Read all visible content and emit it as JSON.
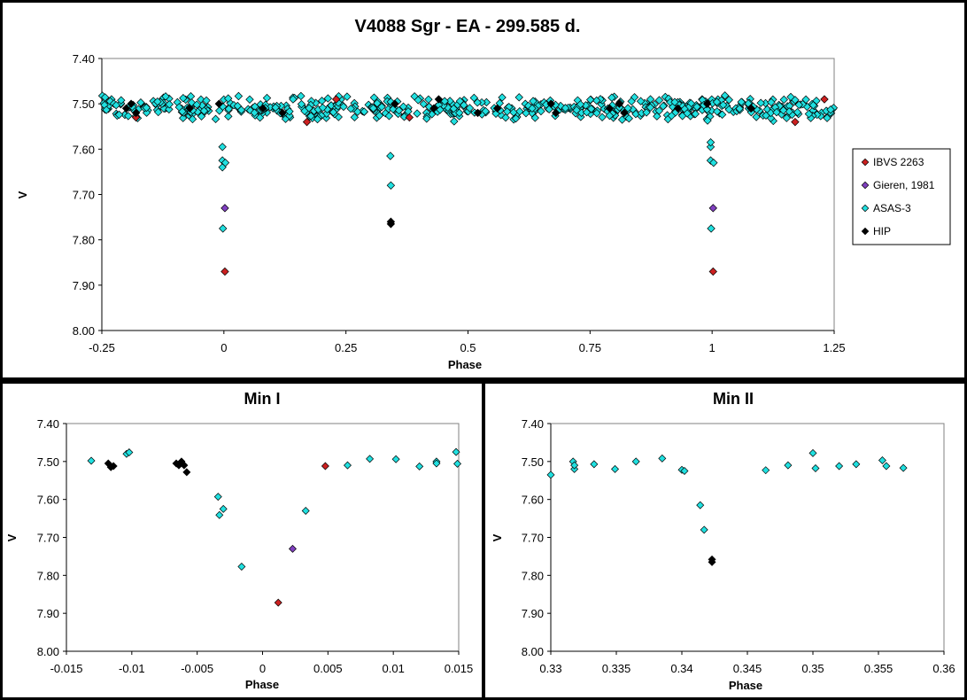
{
  "chart_data": [
    {
      "id": "main",
      "type": "scatter",
      "title": "V4088 Sgr - EA - 299.585 d.",
      "xlabel": "Phase",
      "ylabel": "V",
      "xlim": [
        -0.25,
        1.25
      ],
      "ylim": [
        7.4,
        8.0
      ],
      "y_inverted": true,
      "xticks": [
        -0.25,
        0,
        0.25,
        0.5,
        0.75,
        1,
        1.25
      ],
      "xtick_labels": [
        "-0.25",
        "0",
        "0.25",
        "0.5",
        "0.75",
        "1",
        "1.25"
      ],
      "yticks": [
        7.4,
        7.5,
        7.6,
        7.7,
        7.8,
        7.9,
        8.0
      ],
      "ytick_labels": [
        "7.40",
        "7.50",
        "7.60",
        "7.70",
        "7.80",
        "7.90",
        "8.00"
      ],
      "grid": false,
      "legend_position": "right",
      "series": [
        {
          "name": "IBVS 2263",
          "color": "#cc2020",
          "marker": "diamond",
          "points": [
            [
              0.002,
              7.87
            ],
            [
              1.002,
              7.87
            ],
            [
              0.23,
              7.49
            ],
            [
              0.38,
              7.53
            ],
            [
              0.17,
              7.54
            ],
            [
              1.17,
              7.54
            ],
            [
              1.23,
              7.49
            ],
            [
              -0.18,
              7.53
            ]
          ]
        },
        {
          "name": "Gieren, 1981",
          "color": "#8040c0",
          "marker": "diamond",
          "points": [
            [
              0.002,
              7.73
            ],
            [
              1.002,
              7.73
            ]
          ]
        },
        {
          "name": "ASAS-3",
          "color": "#20e0e0",
          "marker": "diamond",
          "points": [
            [
              -0.003,
              7.595
            ],
            [
              -0.003,
              7.64
            ],
            [
              -0.003,
              7.625
            ],
            [
              0.003,
              7.63
            ],
            [
              -0.002,
              7.775
            ],
            [
              0.997,
              7.595
            ],
            [
              0.997,
              7.585
            ],
            [
              0.997,
              7.625
            ],
            [
              1.003,
              7.63
            ],
            [
              0.998,
              7.775
            ],
            [
              0.341,
              7.615
            ],
            [
              0.342,
              7.68
            ]
          ],
          "band": {
            "x_from": -0.25,
            "x_to": 1.25,
            "y_center": 7.51,
            "y_spread": 0.03,
            "count": 600
          }
        },
        {
          "name": "HIP",
          "color": "#000000",
          "marker": "diamond",
          "points": [
            [
              0.342,
              7.76
            ],
            [
              0.342,
              7.765
            ],
            [
              -0.2,
              7.51
            ],
            [
              -0.19,
              7.5
            ],
            [
              -0.18,
              7.52
            ],
            [
              -0.07,
              7.51
            ],
            [
              -0.01,
              7.5
            ],
            [
              0.08,
              7.51
            ],
            [
              0.12,
              7.52
            ],
            [
              0.35,
              7.5
            ],
            [
              0.43,
              7.51
            ],
            [
              0.44,
              7.49
            ],
            [
              0.52,
              7.52
            ],
            [
              0.56,
              7.51
            ],
            [
              0.67,
              7.5
            ],
            [
              0.68,
              7.52
            ],
            [
              0.79,
              7.51
            ],
            [
              0.81,
              7.5
            ],
            [
              0.82,
              7.52
            ],
            [
              0.93,
              7.51
            ],
            [
              0.99,
              7.5
            ],
            [
              1.08,
              7.51
            ]
          ]
        }
      ]
    },
    {
      "id": "min1",
      "type": "scatter",
      "title": "Min I",
      "xlabel": "Phase",
      "ylabel": "V",
      "xlim": [
        -0.015,
        0.015
      ],
      "ylim": [
        7.4,
        8.0
      ],
      "y_inverted": true,
      "xticks": [
        -0.015,
        -0.01,
        -0.005,
        0,
        0.005,
        0.01,
        0.015
      ],
      "xtick_labels": [
        "-0.015",
        "-0.01",
        "-0.005",
        "0",
        "0.005",
        "0.01",
        "0.015"
      ],
      "yticks": [
        7.4,
        7.5,
        7.6,
        7.7,
        7.8,
        7.9,
        8.0
      ],
      "ytick_labels": [
        "7.40",
        "7.50",
        "7.60",
        "7.70",
        "7.80",
        "7.90",
        "8.00"
      ],
      "grid": false,
      "series": [
        {
          "name": "IBVS 2263",
          "color": "#cc2020",
          "marker": "diamond",
          "points": [
            [
              0.0012,
              7.872
            ],
            [
              0.0048,
              7.512
            ]
          ]
        },
        {
          "name": "Gieren, 1981",
          "color": "#8040c0",
          "marker": "diamond",
          "points": [
            [
              0.0023,
              7.73
            ]
          ]
        },
        {
          "name": "ASAS-3",
          "color": "#20e0e0",
          "marker": "diamond",
          "points": [
            [
              -0.0131,
              7.498
            ],
            [
              -0.0104,
              7.48
            ],
            [
              -0.0102,
              7.476
            ],
            [
              -0.0034,
              7.593
            ],
            [
              -0.0033,
              7.641
            ],
            [
              -0.003,
              7.625
            ],
            [
              -0.0016,
              7.777
            ],
            [
              0.0033,
              7.63
            ],
            [
              0.0065,
              7.51
            ],
            [
              0.0082,
              7.493
            ],
            [
              0.0102,
              7.494
            ],
            [
              0.012,
              7.513
            ],
            [
              0.0133,
              7.5
            ],
            [
              0.0133,
              7.505
            ],
            [
              0.0148,
              7.475
            ],
            [
              0.0149,
              7.506
            ]
          ]
        },
        {
          "name": "HIP",
          "color": "#000000",
          "marker": "diamond",
          "points": [
            [
              -0.0118,
              7.505
            ],
            [
              -0.0116,
              7.515
            ],
            [
              -0.0114,
              7.512
            ],
            [
              -0.0066,
              7.505
            ],
            [
              -0.0064,
              7.51
            ],
            [
              -0.0062,
              7.5
            ],
            [
              -0.006,
              7.51
            ],
            [
              -0.0058,
              7.528
            ]
          ]
        }
      ]
    },
    {
      "id": "min2",
      "type": "scatter",
      "title": "Min II",
      "xlabel": "Phase",
      "ylabel": "V",
      "xlim": [
        0.33,
        0.36
      ],
      "ylim": [
        7.4,
        8.0
      ],
      "y_inverted": true,
      "xticks": [
        0.33,
        0.335,
        0.34,
        0.345,
        0.35,
        0.355,
        0.36
      ],
      "xtick_labels": [
        "0.33",
        "0.335",
        "0.34",
        "0.345",
        "0.35",
        "0.355",
        "0.36"
      ],
      "yticks": [
        7.4,
        7.5,
        7.6,
        7.7,
        7.8,
        7.9,
        8.0
      ],
      "ytick_labels": [
        "7.40",
        "7.50",
        "7.60",
        "7.70",
        "7.80",
        "7.90",
        "8.00"
      ],
      "grid": false,
      "series": [
        {
          "name": "ASAS-3",
          "color": "#20e0e0",
          "marker": "diamond",
          "points": [
            [
              0.33,
              7.535
            ],
            [
              0.3317,
              7.5
            ],
            [
              0.3318,
              7.52
            ],
            [
              0.3318,
              7.51
            ],
            [
              0.3333,
              7.507
            ],
            [
              0.3349,
              7.52
            ],
            [
              0.3365,
              7.5
            ],
            [
              0.3385,
              7.492
            ],
            [
              0.34,
              7.522
            ],
            [
              0.3402,
              7.525
            ],
            [
              0.3414,
              7.615
            ],
            [
              0.3417,
              7.68
            ],
            [
              0.3464,
              7.523
            ],
            [
              0.3481,
              7.51
            ],
            [
              0.35,
              7.478
            ],
            [
              0.3502,
              7.518
            ],
            [
              0.352,
              7.512
            ],
            [
              0.3533,
              7.507
            ],
            [
              0.3553,
              7.497
            ],
            [
              0.3556,
              7.512
            ],
            [
              0.3569,
              7.517
            ]
          ]
        },
        {
          "name": "HIP",
          "color": "#000000",
          "marker": "diamond",
          "points": [
            [
              0.3423,
              7.758
            ],
            [
              0.3423,
              7.765
            ]
          ]
        }
      ]
    }
  ]
}
